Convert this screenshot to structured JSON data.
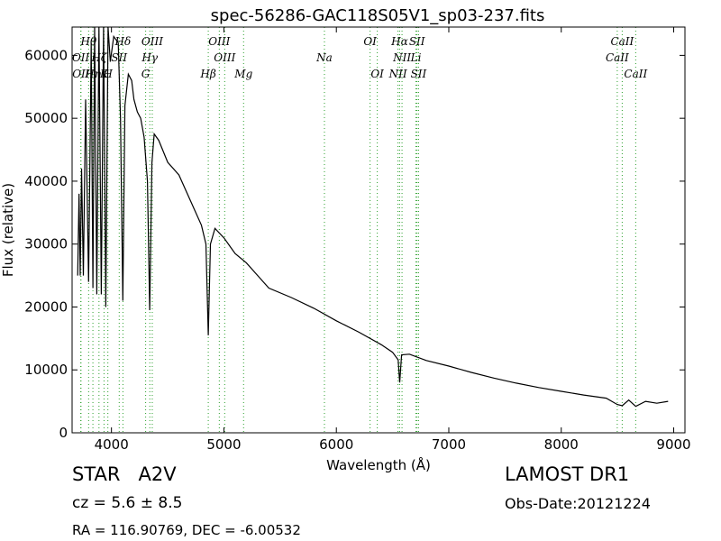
{
  "chart_data": {
    "type": "line",
    "title": "spec-56286-GAC118S05V1_sp03-237.fits",
    "xlabel": "Wavelength (Å)",
    "ylabel": "Flux (relative)",
    "xlim": [
      3650,
      9100
    ],
    "ylim": [
      0,
      64500
    ],
    "x_ticks": [
      4000,
      5000,
      6000,
      7000,
      8000,
      9000
    ],
    "y_ticks": [
      0,
      10000,
      20000,
      30000,
      40000,
      50000,
      60000
    ],
    "x_tick_labels": [
      "4000",
      "5000",
      "6000",
      "7000",
      "8000",
      "9000"
    ],
    "y_tick_labels": [
      "0",
      "10000",
      "20000",
      "30000",
      "40000",
      "50000",
      "60000"
    ],
    "grid": false,
    "line_color": "#000000",
    "marker_color": "#2ca02c",
    "series": [
      {
        "x": [
          3700,
          3712,
          3722,
          3734,
          3750,
          3770,
          3797,
          3820,
          3835,
          3850,
          3870,
          3889,
          3910,
          3930,
          3950,
          3970,
          3990,
          4020,
          4060,
          4080,
          4101,
          4120,
          4150,
          4180,
          4200,
          4230,
          4260,
          4290,
          4320,
          4340,
          4360,
          4380,
          4420,
          4500,
          4600,
          4700,
          4800,
          4840,
          4861,
          4880,
          4920,
          5000,
          5100,
          5200,
          5300,
          5400,
          5600,
          5800,
          6000,
          6200,
          6400,
          6500,
          6550,
          6563,
          6580,
          6650,
          6800,
          7000,
          7200,
          7400,
          7600,
          7800,
          8000,
          8200,
          8400,
          8498,
          8542,
          8600,
          8662,
          8750,
          8850,
          8950
        ],
        "y": [
          25000,
          38000,
          25000,
          42000,
          25000,
          53000,
          24000,
          62000,
          23000,
          64500,
          22000,
          64500,
          22000,
          64500,
          20000,
          64500,
          59000,
          63000,
          62000,
          50000,
          21000,
          52000,
          57000,
          56000,
          53000,
          51000,
          50000,
          47000,
          40000,
          19500,
          43000,
          47500,
          46500,
          43000,
          41000,
          37000,
          33000,
          30000,
          15500,
          30000,
          32500,
          31000,
          28500,
          27000,
          25000,
          23000,
          21500,
          19800,
          17800,
          16000,
          14000,
          12800,
          11600,
          8000,
          12400,
          12500,
          11500,
          10600,
          9600,
          8700,
          7900,
          7200,
          6600,
          6000,
          5500,
          4500,
          4300,
          5200,
          4200,
          5000,
          4700,
          5000
        ]
      }
    ],
    "line_markers": [
      {
        "label": "Hθ",
        "x": 3797,
        "row": 0
      },
      {
        "label": "OII",
        "x": 3727,
        "row": 1
      },
      {
        "label": "OII",
        "x": 3729,
        "row": 2
      },
      {
        "label": "Hη",
        "x": 3835,
        "row": 2
      },
      {
        "label": "Hζ",
        "x": 3889,
        "row": 1
      },
      {
        "label": "SII",
        "x": 4069,
        "row": 1
      },
      {
        "label": "H",
        "x": 3968,
        "row": 2
      },
      {
        "label": "K",
        "x": 3934,
        "row": 2
      },
      {
        "label": "Hδ",
        "x": 4102,
        "row": 0
      },
      {
        "label": "OIII",
        "x": 4363,
        "row": 0
      },
      {
        "label": "Hγ",
        "x": 4341,
        "row": 1
      },
      {
        "label": "G",
        "x": 4304,
        "row": 2
      },
      {
        "label": "OIII",
        "x": 4959,
        "row": 0
      },
      {
        "label": "Hβ",
        "x": 4861,
        "row": 2
      },
      {
        "label": "OIII",
        "x": 5007,
        "row": 1
      },
      {
        "label": "Mg",
        "x": 5175,
        "row": 2
      },
      {
        "label": "Na",
        "x": 5894,
        "row": 1
      },
      {
        "label": "OI",
        "x": 6300,
        "row": 0
      },
      {
        "label": "OI",
        "x": 6364,
        "row": 2
      },
      {
        "label": "Hα",
        "x": 6563,
        "row": 0
      },
      {
        "label": "SII",
        "x": 6717,
        "row": 0
      },
      {
        "label": "NII",
        "x": 6584,
        "row": 1
      },
      {
        "label": "Li",
        "x": 6708,
        "row": 1
      },
      {
        "label": "NII",
        "x": 6548,
        "row": 2
      },
      {
        "label": "SII",
        "x": 6731,
        "row": 2
      },
      {
        "label": "CaII",
        "x": 8542,
        "row": 0
      },
      {
        "label": "CaII",
        "x": 8498,
        "row": 1
      },
      {
        "label": "CaII",
        "x": 8662,
        "row": 2
      }
    ]
  },
  "info": {
    "class_label": "STAR   A2V",
    "survey": "LAMOST DR1",
    "redshift": "cz = 5.6 ± 8.5",
    "obs_date": "Obs-Date:20121224",
    "coords": "RA = 116.90769, DEC = -6.00532"
  }
}
